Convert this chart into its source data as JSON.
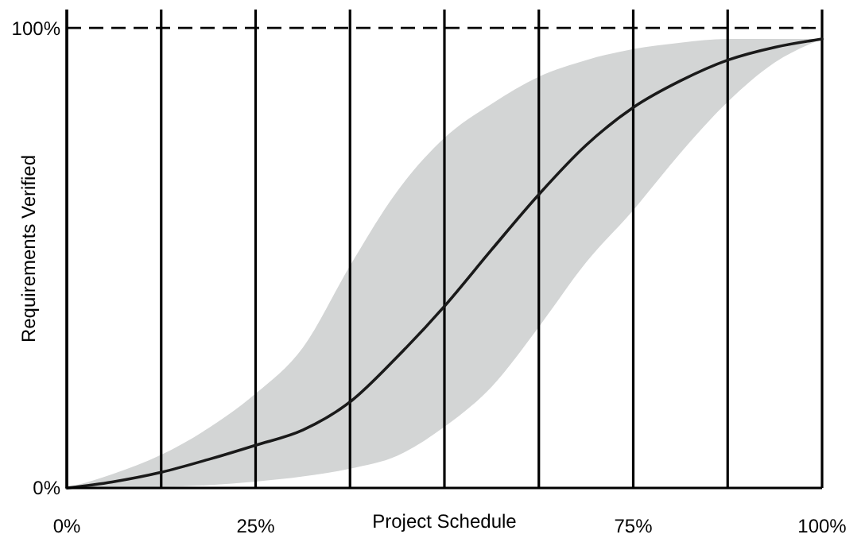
{
  "chart_data": {
    "type": "line",
    "xlabel": "Project Schedule",
    "ylabel": "Requirements Verified",
    "x": [
      0,
      6,
      12.5,
      18.75,
      25,
      31.25,
      37.5,
      43.75,
      50,
      56.25,
      62.5,
      68.75,
      75,
      81.25,
      87.5,
      93.75,
      100
    ],
    "series": [
      {
        "color": "#1a1a1a",
        "values": [
          0,
          1.3,
          3.4,
          6.2,
          9.3,
          12.6,
          18.7,
          28.5,
          39.5,
          51.8,
          63.8,
          74.5,
          82.7,
          88.5,
          93,
          95.8,
          97.6
        ],
        "upper": [
          0,
          3,
          7.2,
          13,
          20.5,
          30.5,
          48.3,
          64.5,
          76.1,
          83.5,
          89.4,
          93,
          95.4,
          96.8,
          97.6,
          97.6,
          97.6
        ],
        "lower": [
          0,
          0.05,
          0.2,
          0.6,
          1.4,
          2.5,
          4.2,
          7,
          13.3,
          22,
          35,
          49,
          60.4,
          72.8,
          83.9,
          92.5,
          97.6
        ]
      }
    ],
    "xlim": [
      0,
      100
    ],
    "ylim": [
      0,
      104
    ],
    "xticks": [
      {
        "value": 0,
        "label": "0%"
      },
      {
        "value": 12.5,
        "label": null
      },
      {
        "value": 25,
        "label": "25%"
      },
      {
        "value": 37.5,
        "label": null
      },
      {
        "value": 50,
        "label": null
      },
      {
        "value": 62.5,
        "label": null
      },
      {
        "value": 75,
        "label": "75%"
      },
      {
        "value": 87.5,
        "label": null
      },
      {
        "value": 100,
        "label": "100%"
      }
    ],
    "yticks": [
      {
        "value": 0,
        "label": "0%"
      },
      {
        "value": 100,
        "label": "100%"
      }
    ],
    "grid": "x",
    "marker": "none",
    "line_style": "solid",
    "ref_lines": [
      {
        "axis": "y",
        "value": 100,
        "color": "#000000",
        "line_style": "dashed"
      }
    ]
  }
}
